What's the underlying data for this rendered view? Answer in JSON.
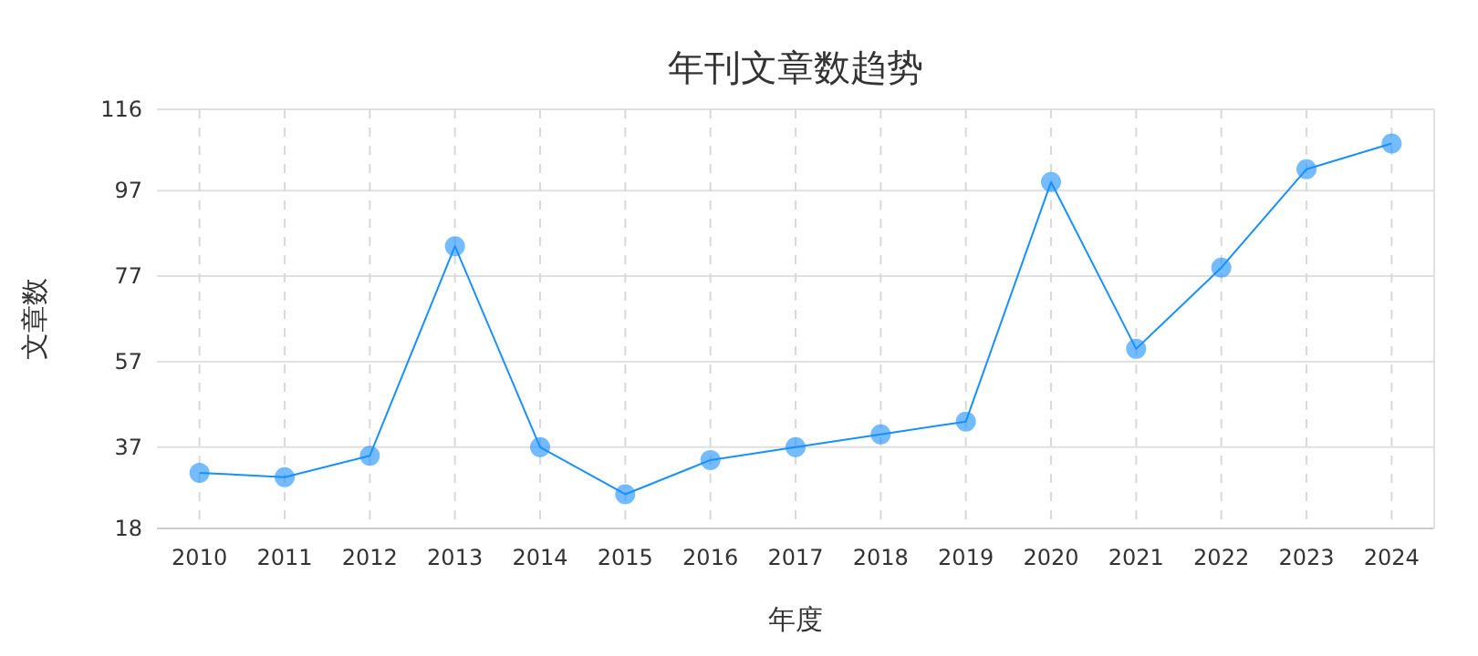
{
  "chart_data": {
    "type": "line",
    "title": "年刊文章数趋势",
    "xlabel": "年度",
    "ylabel": "文章数",
    "categories": [
      "2010",
      "2011",
      "2012",
      "2013",
      "2014",
      "2015",
      "2016",
      "2017",
      "2018",
      "2019",
      "2020",
      "2021",
      "2022",
      "2023",
      "2024"
    ],
    "series": [
      {
        "color": "#1890ff",
        "values": [
          31,
          30,
          35,
          84,
          37,
          26,
          34,
          37,
          40,
          43,
          99,
          60,
          79,
          102,
          108
        ]
      }
    ],
    "ylim": [
      18,
      116
    ],
    "yticks": [
      18,
      37,
      57,
      77,
      97,
      116
    ],
    "grid": true,
    "marker": "circle",
    "line_style": "solid"
  }
}
